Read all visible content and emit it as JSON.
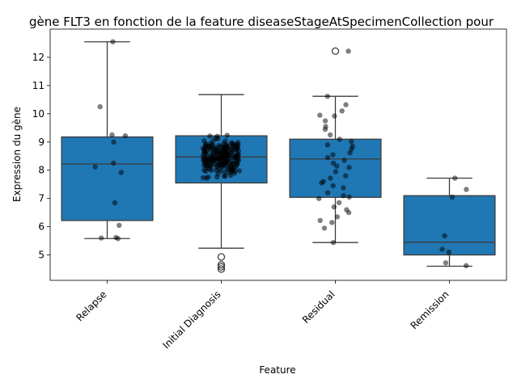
{
  "chart_data": {
    "type": "box",
    "title": "gène FLT3 en fonction de la feature diseaseStageAtSpecimenCollection pour",
    "xlabel": "Feature",
    "ylabel": "Expression du gène",
    "ylim": [
      4.1,
      13.0
    ],
    "yticks": [
      5,
      6,
      7,
      8,
      9,
      10,
      11,
      12
    ],
    "box_color": "#1f77b4",
    "categories": [
      "Relapse",
      "Initial Diagnosis",
      "Residual",
      "Remission"
    ],
    "boxes": [
      {
        "category": "Relapse",
        "whisker_low": 5.58,
        "q1": 6.22,
        "median": 8.22,
        "q3": 9.18,
        "whisker_high": 12.55,
        "outliers": []
      },
      {
        "category": "Initial Diagnosis",
        "whisker_low": 5.24,
        "q1": 7.55,
        "median": 8.47,
        "q3": 9.22,
        "whisker_high": 10.68,
        "outliers": [
          4.93,
          4.65,
          4.58,
          4.5
        ]
      },
      {
        "category": "Residual",
        "whisker_low": 5.44,
        "q1": 7.04,
        "median": 8.4,
        "q3": 9.1,
        "whisker_high": 10.62,
        "outliers": [
          12.22
        ]
      },
      {
        "category": "Remission",
        "whisker_low": 4.6,
        "q1": 5.0,
        "median": 5.45,
        "q3": 7.1,
        "whisker_high": 7.72,
        "outliers": []
      }
    ],
    "points": [
      {
        "category": "Relapse",
        "values": [
          12.55,
          10.25,
          9.25,
          9.22,
          9.0,
          8.25,
          8.12,
          7.92,
          6.85,
          6.05,
          5.62,
          5.6,
          5.58
        ]
      },
      {
        "category": "Initial Diagnosis",
        "n": 210,
        "range": [
          4.5,
          10.68
        ],
        "center": 8.47
      },
      {
        "category": "Residual",
        "values": [
          12.22,
          10.62,
          10.32,
          10.1,
          9.95,
          9.92,
          9.75,
          9.55,
          9.45,
          9.25,
          9.1,
          9.02,
          8.9,
          8.85,
          8.75,
          8.62,
          8.55,
          8.45,
          8.35,
          8.25,
          8.15,
          8.1,
          7.95,
          7.8,
          7.72,
          7.6,
          7.55,
          7.45,
          7.38,
          7.2,
          7.1,
          7.05,
          7.0,
          6.85,
          6.7,
          6.6,
          6.5,
          6.35,
          6.22,
          6.15,
          5.95,
          5.44
        ]
      },
      {
        "category": "Remission",
        "values": [
          7.72,
          7.32,
          7.05,
          5.68,
          5.2,
          5.1,
          4.72,
          4.62
        ]
      }
    ]
  }
}
